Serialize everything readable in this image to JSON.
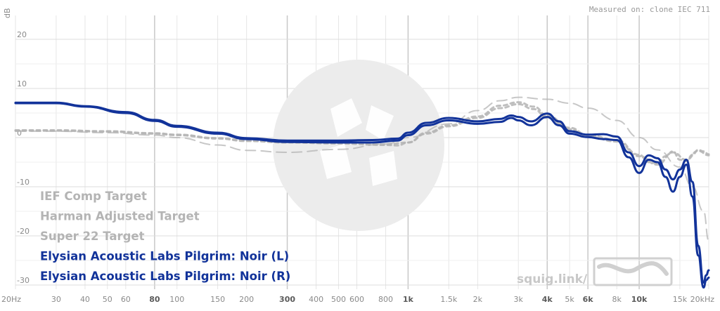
{
  "measured_label": "Measured on: clone IEC 711",
  "watermark_text": "squig.link/",
  "colors": {
    "target_gray": "#b4b4b4",
    "noir_blue": "#12339a",
    "grid": "#e6e6e6",
    "grid_major": "#c8c8c8"
  },
  "chart_data": {
    "type": "line",
    "ylabel": "dB",
    "x_scale": "log",
    "xlim": [
      20,
      20000
    ],
    "ylim": [
      -30,
      25
    ],
    "x_ticks": [
      {
        "v": 20,
        "label": "20Hz",
        "major": false
      },
      {
        "v": 30,
        "label": "30",
        "major": false
      },
      {
        "v": 40,
        "label": "40",
        "major": false
      },
      {
        "v": 50,
        "label": "50",
        "major": false
      },
      {
        "v": 60,
        "label": "60",
        "major": false
      },
      {
        "v": 80,
        "label": "80",
        "major": true
      },
      {
        "v": 100,
        "label": "100",
        "major": false
      },
      {
        "v": 150,
        "label": "150",
        "major": false
      },
      {
        "v": 200,
        "label": "200",
        "major": false
      },
      {
        "v": 300,
        "label": "300",
        "major": true
      },
      {
        "v": 400,
        "label": "400",
        "major": false
      },
      {
        "v": 500,
        "label": "500",
        "major": false
      },
      {
        "v": 600,
        "label": "600",
        "major": false
      },
      {
        "v": 800,
        "label": "800",
        "major": false
      },
      {
        "v": 1000,
        "label": "1k",
        "major": true
      },
      {
        "v": 1500,
        "label": "1.5k",
        "major": false
      },
      {
        "v": 2000,
        "label": "2k",
        "major": false
      },
      {
        "v": 3000,
        "label": "3k",
        "major": false
      },
      {
        "v": 4000,
        "label": "4k",
        "major": true
      },
      {
        "v": 5000,
        "label": "5k",
        "major": false
      },
      {
        "v": 6000,
        "label": "6k",
        "major": true
      },
      {
        "v": 8000,
        "label": "8k",
        "major": false
      },
      {
        "v": 10000,
        "label": "10k",
        "major": true
      },
      {
        "v": 15000,
        "label": "15k",
        "major": false
      },
      {
        "v": 20000,
        "label": "20kHz",
        "major": false
      }
    ],
    "y_ticks": [
      {
        "v": 20,
        "label": "20"
      },
      {
        "v": 10,
        "label": "10"
      },
      {
        "v": 0,
        "label": "0"
      },
      {
        "v": -10,
        "label": "-10"
      },
      {
        "v": -20,
        "label": "-20"
      },
      {
        "v": -30,
        "label": "-30"
      }
    ],
    "series": [
      {
        "name": "IEF Comp Target",
        "color": "#b4b4b4",
        "style": "dash-long",
        "points": [
          [
            20,
            1.3
          ],
          [
            30,
            1.3
          ],
          [
            50,
            1
          ],
          [
            80,
            0.5
          ],
          [
            100,
            0
          ],
          [
            150,
            -1.5
          ],
          [
            200,
            -2.6
          ],
          [
            300,
            -3
          ],
          [
            500,
            -2.4
          ],
          [
            800,
            -1.3
          ],
          [
            1000,
            0
          ],
          [
            1500,
            2.8
          ],
          [
            2000,
            5.5
          ],
          [
            2500,
            7.5
          ],
          [
            3000,
            8.2
          ],
          [
            4000,
            7.8
          ],
          [
            5000,
            7
          ],
          [
            6000,
            6
          ],
          [
            8000,
            3.5
          ],
          [
            10000,
            0
          ],
          [
            12000,
            -2.5
          ],
          [
            15000,
            -6
          ],
          [
            17000,
            -10
          ],
          [
            19000,
            -15
          ],
          [
            20000,
            -21
          ]
        ]
      },
      {
        "name": "Harman Adjusted Target",
        "color": "#b4b4b4",
        "style": "dash-short",
        "points": [
          [
            20,
            1.4
          ],
          [
            30,
            1.4
          ],
          [
            50,
            1.2
          ],
          [
            80,
            0.8
          ],
          [
            100,
            0.5
          ],
          [
            150,
            -0.2
          ],
          [
            200,
            -0.7
          ],
          [
            300,
            -1
          ],
          [
            500,
            -1.2
          ],
          [
            800,
            -1.5
          ],
          [
            900,
            -1.6
          ],
          [
            1000,
            -1
          ],
          [
            1200,
            1
          ],
          [
            1500,
            2.5
          ],
          [
            2000,
            4.3
          ],
          [
            2500,
            6.5
          ],
          [
            3000,
            7.2
          ],
          [
            3500,
            6.3
          ],
          [
            4000,
            4.5
          ],
          [
            5000,
            2
          ],
          [
            6000,
            0.5
          ],
          [
            8000,
            -0.5
          ],
          [
            10000,
            -3.5
          ],
          [
            11000,
            -5
          ],
          [
            12000,
            -5.3
          ],
          [
            13000,
            -3.8
          ],
          [
            14000,
            -2.8
          ],
          [
            15000,
            -4.5
          ],
          [
            16000,
            -4.8
          ],
          [
            17000,
            -3.5
          ],
          [
            18000,
            -2.5
          ],
          [
            19000,
            -2.8
          ],
          [
            20000,
            -3.4
          ]
        ]
      },
      {
        "name": "Super 22 Target",
        "color": "#b4b4b4",
        "style": "dash-short",
        "points": [
          [
            20,
            1.5
          ],
          [
            30,
            1.5
          ],
          [
            50,
            1.3
          ],
          [
            80,
            0.9
          ],
          [
            100,
            0.6
          ],
          [
            150,
            -0.1
          ],
          [
            200,
            -0.6
          ],
          [
            300,
            -0.9
          ],
          [
            500,
            -1.1
          ],
          [
            800,
            -1.4
          ],
          [
            1000,
            -1
          ],
          [
            1200,
            0.8
          ],
          [
            1500,
            2.3
          ],
          [
            2000,
            4
          ],
          [
            2500,
            6
          ],
          [
            3000,
            6.8
          ],
          [
            3500,
            5.8
          ],
          [
            4000,
            4
          ],
          [
            5000,
            1.7
          ],
          [
            6000,
            0.2
          ],
          [
            8000,
            -0.8
          ],
          [
            10000,
            -3.8
          ],
          [
            12000,
            -5.5
          ],
          [
            14000,
            -3
          ],
          [
            16000,
            -4.5
          ],
          [
            18000,
            -2.7
          ],
          [
            20000,
            -3.6
          ]
        ]
      },
      {
        "name": "Elysian Acoustic Labs Pilgrim: Noir (L)",
        "color": "#12339a",
        "style": "solid",
        "points": [
          [
            20,
            7
          ],
          [
            30,
            7
          ],
          [
            40,
            6.3
          ],
          [
            60,
            5
          ],
          [
            80,
            3.4
          ],
          [
            100,
            2.2
          ],
          [
            150,
            0.8
          ],
          [
            200,
            -0.3
          ],
          [
            300,
            -0.9
          ],
          [
            500,
            -1
          ],
          [
            700,
            -1
          ],
          [
            900,
            -0.6
          ],
          [
            1000,
            0.5
          ],
          [
            1200,
            2.5
          ],
          [
            1500,
            3.5
          ],
          [
            2000,
            2.8
          ],
          [
            2500,
            3.2
          ],
          [
            2800,
            4
          ],
          [
            3000,
            3.5
          ],
          [
            3400,
            2.5
          ],
          [
            4000,
            4.2
          ],
          [
            4500,
            2.5
          ],
          [
            5000,
            0.8
          ],
          [
            6000,
            0.1
          ],
          [
            7000,
            -0.3
          ],
          [
            8000,
            -0.5
          ],
          [
            9000,
            -4
          ],
          [
            10000,
            -7.2
          ],
          [
            11000,
            -4.5
          ],
          [
            12000,
            -5
          ],
          [
            13000,
            -8
          ],
          [
            14000,
            -11
          ],
          [
            15000,
            -8
          ],
          [
            16000,
            -5.5
          ],
          [
            17000,
            -12
          ],
          [
            18000,
            -24
          ],
          [
            19000,
            -30.5
          ],
          [
            19500,
            -29
          ],
          [
            20000,
            -28.5
          ]
        ]
      },
      {
        "name": "Elysian Acoustic Labs Pilgrim: Noir (R)",
        "color": "#12339a",
        "style": "solid",
        "points": [
          [
            20,
            7.1
          ],
          [
            30,
            7.1
          ],
          [
            40,
            6.4
          ],
          [
            60,
            5.2
          ],
          [
            80,
            3.6
          ],
          [
            100,
            2.4
          ],
          [
            150,
            1
          ],
          [
            200,
            -0.1
          ],
          [
            300,
            -0.6
          ],
          [
            500,
            -0.6
          ],
          [
            700,
            -0.5
          ],
          [
            900,
            -0.2
          ],
          [
            1000,
            1
          ],
          [
            1200,
            3
          ],
          [
            1500,
            4
          ],
          [
            2000,
            3.3
          ],
          [
            2500,
            3.8
          ],
          [
            2800,
            4.5
          ],
          [
            3000,
            4.2
          ],
          [
            3400,
            3.3
          ],
          [
            4000,
            4.9
          ],
          [
            4500,
            3.3
          ],
          [
            5000,
            1.3
          ],
          [
            6000,
            0.6
          ],
          [
            7000,
            0.7
          ],
          [
            8000,
            0.2
          ],
          [
            9000,
            -3
          ],
          [
            10000,
            -5.8
          ],
          [
            11000,
            -3.6
          ],
          [
            12000,
            -4.2
          ],
          [
            13000,
            -6.5
          ],
          [
            14000,
            -8.5
          ],
          [
            15000,
            -6.5
          ],
          [
            16000,
            -4.5
          ],
          [
            17000,
            -9
          ],
          [
            18000,
            -22
          ],
          [
            19000,
            -29.5
          ],
          [
            19500,
            -28
          ],
          [
            20000,
            -27
          ]
        ]
      }
    ]
  }
}
